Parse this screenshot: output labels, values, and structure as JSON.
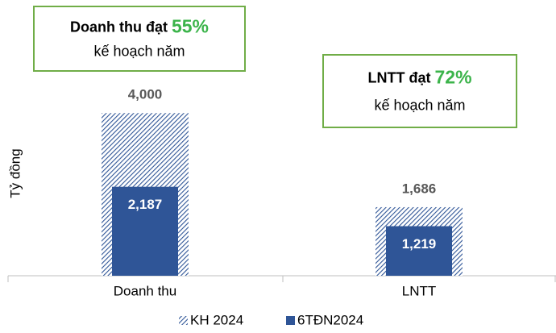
{
  "chart_data": {
    "type": "bar",
    "y_label": "Tỷ đồng",
    "categories": [
      "Doanh thu",
      "LNTT"
    ],
    "series": [
      {
        "name": "KH 2024",
        "color": "#2f5597",
        "hatch": true,
        "values": [
          4000,
          1686
        ],
        "value_labels": [
          "4,000",
          "1,686"
        ]
      },
      {
        "name": "6TĐN2024",
        "color": "#2f5597",
        "hatch": false,
        "values": [
          2187,
          1219
        ],
        "value_labels": [
          "2,187",
          "1,219"
        ]
      }
    ],
    "ylim": [
      0,
      4500
    ],
    "annotations": [
      {
        "text": "Doanh thu đạt",
        "highlight": "55%",
        "subtext": "kế hoạch năm"
      },
      {
        "text": "LNTT đạt",
        "highlight": "72%",
        "subtext": "kế hoạch năm"
      }
    ]
  }
}
